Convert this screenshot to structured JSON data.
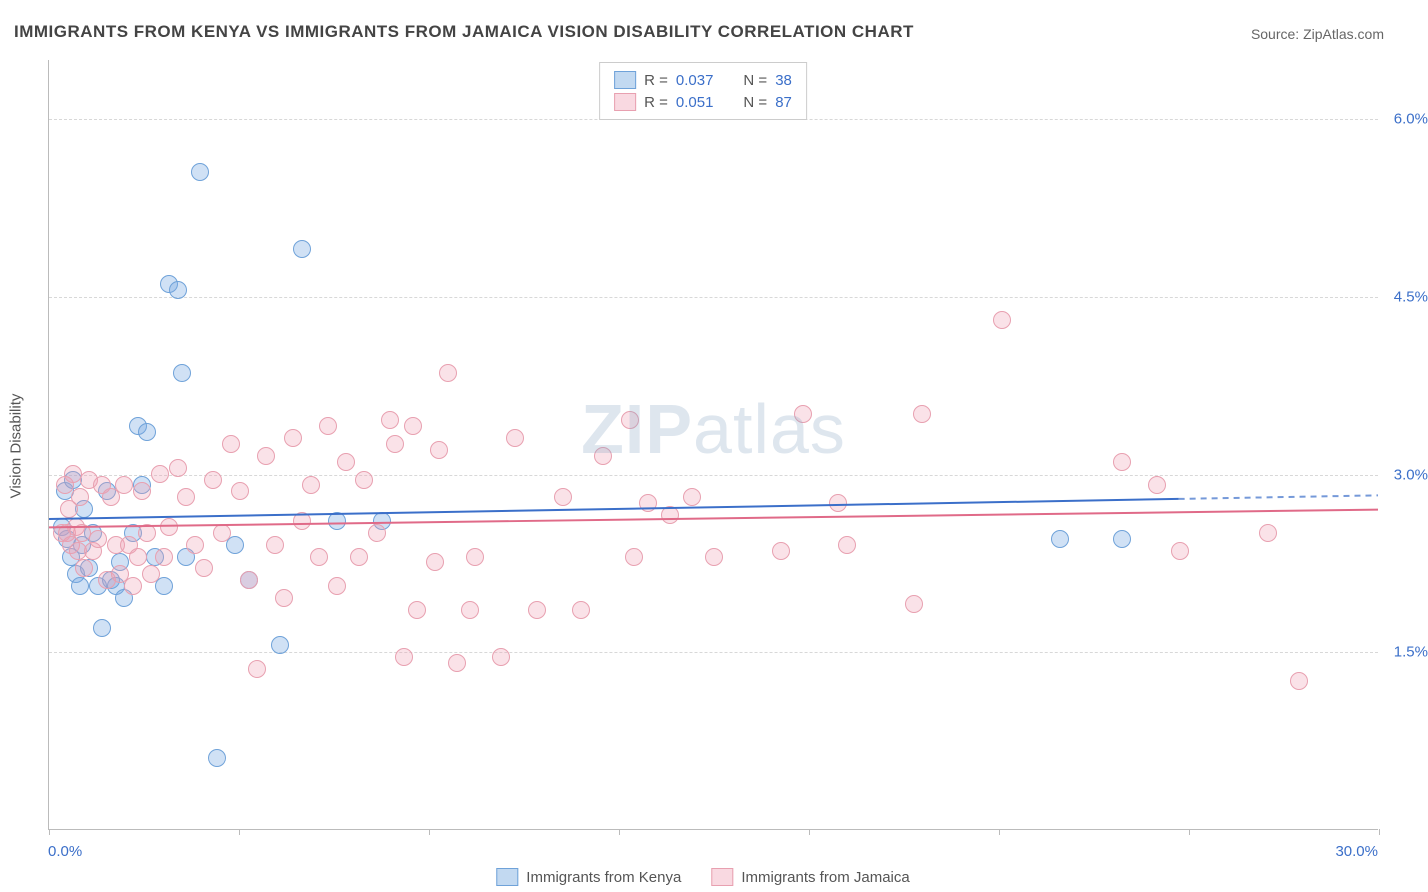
{
  "title": "IMMIGRANTS FROM KENYA VS IMMIGRANTS FROM JAMAICA VISION DISABILITY CORRELATION CHART",
  "source": "Source: ZipAtlas.com",
  "watermark_bold": "ZIP",
  "watermark_rest": "atlas",
  "ylabel": "Vision Disability",
  "chart": {
    "type": "scatter",
    "xlim": [
      0,
      30
    ],
    "ylim": [
      0,
      6.5
    ],
    "yticks": [
      1.5,
      3.0,
      4.5,
      6.0
    ],
    "ytick_labels": [
      "1.5%",
      "3.0%",
      "4.5%",
      "6.0%"
    ],
    "xticks": [
      0,
      4.29,
      8.57,
      12.86,
      17.14,
      21.43,
      25.71,
      30
    ],
    "xmin_label": "0.0%",
    "xmax_label": "30.0%",
    "background_color": "#ffffff",
    "grid_color": "#d8d8d8",
    "axis_color": "#bbbbbb",
    "tick_label_color": "#3b6fc9",
    "marker_radius": 8,
    "series": [
      {
        "name": "Immigrants from Kenya",
        "color_fill": "rgba(120,170,225,0.35)",
        "color_stroke": "#6fa2d9",
        "class": "blue",
        "R": "0.037",
        "N": "38",
        "trend": {
          "y_at_x0": 2.62,
          "y_at_x30": 2.82,
          "solid_until_x": 25.5,
          "stroke": "#3b6fc9",
          "width": 2
        },
        "points": [
          [
            0.3,
            2.55
          ],
          [
            0.35,
            2.85
          ],
          [
            0.4,
            2.45
          ],
          [
            0.5,
            2.3
          ],
          [
            0.55,
            2.95
          ],
          [
            0.6,
            2.15
          ],
          [
            0.7,
            2.05
          ],
          [
            0.75,
            2.4
          ],
          [
            0.8,
            2.7
          ],
          [
            0.9,
            2.2
          ],
          [
            1.0,
            2.5
          ],
          [
            1.1,
            2.05
          ],
          [
            1.2,
            1.7
          ],
          [
            1.3,
            2.85
          ],
          [
            1.4,
            2.1
          ],
          [
            1.5,
            2.05
          ],
          [
            1.6,
            2.25
          ],
          [
            1.7,
            1.95
          ],
          [
            1.9,
            2.5
          ],
          [
            2.0,
            3.4
          ],
          [
            2.1,
            2.9
          ],
          [
            2.2,
            3.35
          ],
          [
            2.4,
            2.3
          ],
          [
            2.6,
            2.05
          ],
          [
            2.7,
            4.6
          ],
          [
            2.9,
            4.55
          ],
          [
            3.0,
            3.85
          ],
          [
            3.1,
            2.3
          ],
          [
            3.4,
            5.55
          ],
          [
            3.8,
            0.6
          ],
          [
            4.2,
            2.4
          ],
          [
            4.5,
            2.1
          ],
          [
            5.2,
            1.55
          ],
          [
            5.7,
            4.9
          ],
          [
            6.5,
            2.6
          ],
          [
            7.5,
            2.6
          ],
          [
            22.8,
            2.45
          ],
          [
            24.2,
            2.45
          ]
        ]
      },
      {
        "name": "Immigrants from Jamaica",
        "color_fill": "rgba(240,160,180,0.30)",
        "color_stroke": "#e8a0b0",
        "class": "pink",
        "R": "0.051",
        "N": "87",
        "trend": {
          "y_at_x0": 2.55,
          "y_at_x30": 2.7,
          "solid_until_x": 30,
          "stroke": "#e06a88",
          "width": 2
        },
        "points": [
          [
            0.3,
            2.5
          ],
          [
            0.35,
            2.9
          ],
          [
            0.4,
            2.5
          ],
          [
            0.45,
            2.7
          ],
          [
            0.5,
            2.4
          ],
          [
            0.55,
            3.0
          ],
          [
            0.6,
            2.55
          ],
          [
            0.65,
            2.35
          ],
          [
            0.7,
            2.8
          ],
          [
            0.75,
            2.5
          ],
          [
            0.8,
            2.2
          ],
          [
            0.9,
            2.95
          ],
          [
            1.0,
            2.35
          ],
          [
            1.1,
            2.45
          ],
          [
            1.2,
            2.9
          ],
          [
            1.3,
            2.1
          ],
          [
            1.4,
            2.8
          ],
          [
            1.5,
            2.4
          ],
          [
            1.6,
            2.15
          ],
          [
            1.7,
            2.9
          ],
          [
            1.8,
            2.4
          ],
          [
            1.9,
            2.05
          ],
          [
            2.0,
            2.3
          ],
          [
            2.1,
            2.85
          ],
          [
            2.2,
            2.5
          ],
          [
            2.3,
            2.15
          ],
          [
            2.5,
            3.0
          ],
          [
            2.6,
            2.3
          ],
          [
            2.7,
            2.55
          ],
          [
            2.9,
            3.05
          ],
          [
            3.1,
            2.8
          ],
          [
            3.3,
            2.4
          ],
          [
            3.5,
            2.2
          ],
          [
            3.7,
            2.95
          ],
          [
            3.9,
            2.5
          ],
          [
            4.1,
            3.25
          ],
          [
            4.3,
            2.85
          ],
          [
            4.5,
            2.1
          ],
          [
            4.7,
            1.35
          ],
          [
            4.9,
            3.15
          ],
          [
            5.1,
            2.4
          ],
          [
            5.3,
            1.95
          ],
          [
            5.5,
            3.3
          ],
          [
            5.7,
            2.6
          ],
          [
            5.9,
            2.9
          ],
          [
            6.1,
            2.3
          ],
          [
            6.3,
            3.4
          ],
          [
            6.5,
            2.05
          ],
          [
            6.7,
            3.1
          ],
          [
            7.0,
            2.3
          ],
          [
            7.1,
            2.95
          ],
          [
            7.4,
            2.5
          ],
          [
            7.7,
            3.45
          ],
          [
            7.8,
            3.25
          ],
          [
            8.0,
            1.45
          ],
          [
            8.2,
            3.4
          ],
          [
            8.3,
            1.85
          ],
          [
            8.7,
            2.25
          ],
          [
            8.8,
            3.2
          ],
          [
            9.0,
            3.85
          ],
          [
            9.2,
            1.4
          ],
          [
            9.5,
            1.85
          ],
          [
            9.6,
            2.3
          ],
          [
            10.2,
            1.45
          ],
          [
            10.5,
            3.3
          ],
          [
            11.0,
            1.85
          ],
          [
            12.0,
            1.85
          ],
          [
            12.5,
            3.15
          ],
          [
            13.1,
            3.45
          ],
          [
            13.2,
            2.3
          ],
          [
            13.5,
            2.75
          ],
          [
            14.0,
            2.65
          ],
          [
            14.5,
            2.8
          ],
          [
            15.0,
            2.3
          ],
          [
            16.5,
            2.35
          ],
          [
            17.0,
            3.5
          ],
          [
            17.8,
            2.75
          ],
          [
            18.0,
            2.4
          ],
          [
            19.5,
            1.9
          ],
          [
            21.5,
            4.3
          ],
          [
            19.7,
            3.5
          ],
          [
            24.2,
            3.1
          ],
          [
            25.0,
            2.9
          ],
          [
            25.5,
            2.35
          ],
          [
            28.2,
            1.25
          ],
          [
            27.5,
            2.5
          ],
          [
            11.6,
            2.8
          ]
        ]
      }
    ]
  },
  "legend_top": [
    {
      "class": "blue",
      "R": "0.037",
      "N": "38"
    },
    {
      "class": "pink",
      "R": "0.051",
      "N": "87"
    }
  ],
  "legend_bottom": [
    {
      "class": "blue",
      "label": "Immigrants from Kenya"
    },
    {
      "class": "pink",
      "label": "Immigrants from Jamaica"
    }
  ]
}
